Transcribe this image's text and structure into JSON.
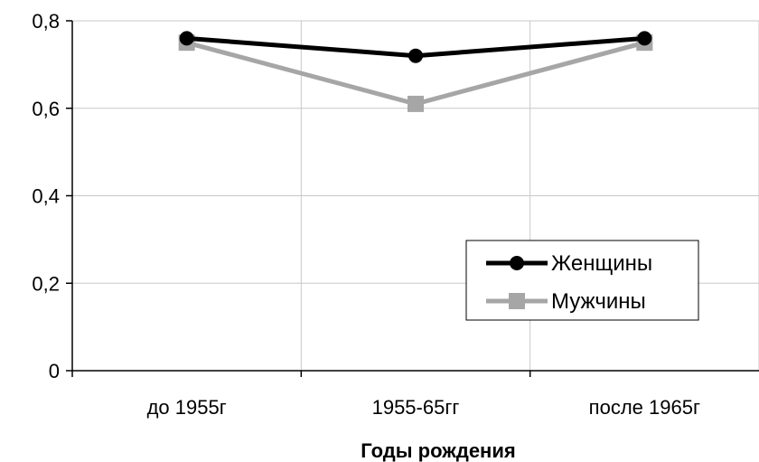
{
  "chart_data": {
    "type": "line",
    "categories": [
      "до 1955г",
      "1955-65гг",
      "после 1965г"
    ],
    "series": [
      {
        "name": "Женщины",
        "values": [
          0.76,
          0.72,
          0.76
        ],
        "color": "#000000",
        "marker": "circle"
      },
      {
        "name": "Мужчины",
        "values": [
          0.75,
          0.61,
          0.75
        ],
        "color": "#a6a6a6",
        "marker": "square"
      }
    ],
    "xlabel": "Годы рождения",
    "ylabel": "",
    "ylim": [
      0,
      0.8
    ],
    "yticks": [
      0,
      0.2,
      0.4,
      0.6,
      0.8
    ],
    "ytick_labels": [
      "0",
      "0,2",
      "0,4",
      "0,6",
      "0,8"
    ],
    "grid": true,
    "legend_position": "bottom-right",
    "colors": {
      "gridline": "#c8c8c8",
      "axis": "#000000",
      "legend_border": "#000000"
    }
  }
}
